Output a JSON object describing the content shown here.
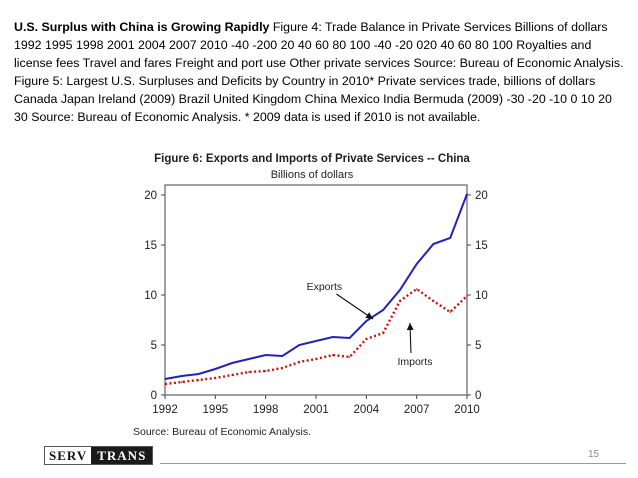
{
  "slide": {
    "heading": "U.S. Surplus with China is Growing Rapidly",
    "body": "Figure 4: Trade Balance in Private Services Billions of dollars 1992 1995 1998 2001 2004 2007 2010 -40 -200 20 40 60 80 100 -40 -20 020 40 60 80 100 Royalties and license fees Travel and fares Freight and port use Other private services Source: Bureau of Economic Analysis. Figure 5: Largest U.S. Surpluses and Deficits by Country in 2010* Private services trade, billions of dollars Canada Japan Ireland (2009) Brazil United Kingdom China Mexico India Bermuda (2009) -30 -20 -10 0 10 20 30 Source: Bureau of Economic Analysis. * 2009 data is used if 2010 is not available.",
    "source": "Source: Bureau of Economic Analysis.",
    "page_number": "15"
  },
  "logo": {
    "left": "SERV",
    "right": "TRANS"
  },
  "chart_data": {
    "type": "line",
    "title": "Figure 6: Exports and Imports of Private Services -- China",
    "subtitle": "Billions of dollars",
    "xlim": [
      1992,
      2010
    ],
    "ylim": [
      0,
      21
    ],
    "x_ticks": [
      "1992",
      "1995",
      "1998",
      "2001",
      "2004",
      "2007",
      "2010"
    ],
    "y_ticks": [
      "0",
      "5",
      "10",
      "15",
      "20"
    ],
    "grid": false,
    "series": [
      {
        "name": "Exports",
        "color": "#2222bb",
        "style": "solid",
        "x": [
          1992,
          1993,
          1994,
          1995,
          1996,
          1997,
          1998,
          1999,
          2000,
          2001,
          2002,
          2003,
          2004,
          2005,
          2006,
          2007,
          2008,
          2009,
          2010
        ],
        "values": [
          1.6,
          1.9,
          2.1,
          2.6,
          3.2,
          3.6,
          4.0,
          3.9,
          5.0,
          5.4,
          5.8,
          5.7,
          7.4,
          8.5,
          10.5,
          13.1,
          15.1,
          15.7,
          20.1
        ]
      },
      {
        "name": "Imports",
        "color": "#cc1111",
        "style": "dotted",
        "x": [
          1992,
          1993,
          1994,
          1995,
          1996,
          1997,
          1998,
          1999,
          2000,
          2001,
          2002,
          2003,
          2004,
          2005,
          2006,
          2007,
          2008,
          2009,
          2010
        ],
        "values": [
          1.1,
          1.3,
          1.5,
          1.7,
          2.0,
          2.3,
          2.4,
          2.7,
          3.3,
          3.6,
          4.0,
          3.8,
          5.6,
          6.2,
          9.4,
          10.6,
          9.4,
          8.3,
          9.9
        ]
      }
    ],
    "annotations": [
      {
        "text": "Exports",
        "at_x": 2004.4,
        "at_y": 7.6,
        "label_x": 2001.5,
        "label_y": 10.5
      },
      {
        "text": "Imports",
        "at_x": 2006.6,
        "at_y": 7.2,
        "label_x": 2006.9,
        "label_y": 3.0
      }
    ]
  }
}
